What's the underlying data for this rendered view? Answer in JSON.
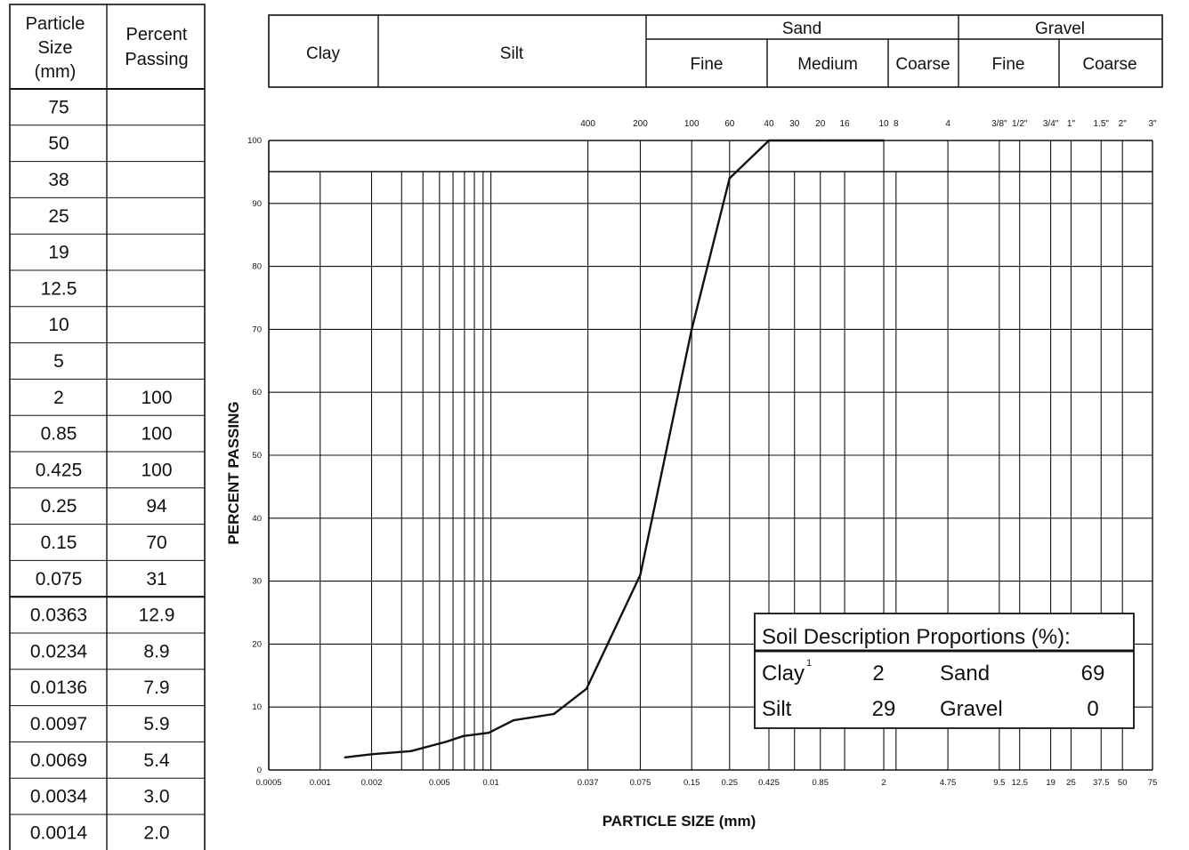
{
  "table": {
    "headers": {
      "particle_size": [
        "Particle",
        "Size",
        "(mm)"
      ],
      "percent_passing": [
        "Percent",
        "Passing"
      ]
    },
    "rows": [
      {
        "size": "75",
        "passing": ""
      },
      {
        "size": "50",
        "passing": ""
      },
      {
        "size": "38",
        "passing": ""
      },
      {
        "size": "25",
        "passing": ""
      },
      {
        "size": "19",
        "passing": ""
      },
      {
        "size": "12.5",
        "passing": ""
      },
      {
        "size": "10",
        "passing": ""
      },
      {
        "size": "5",
        "passing": ""
      },
      {
        "size": "2",
        "passing": "100"
      },
      {
        "size": "0.85",
        "passing": "100"
      },
      {
        "size": "0.425",
        "passing": "100"
      },
      {
        "size": "0.25",
        "passing": "94"
      },
      {
        "size": "0.15",
        "passing": "70"
      },
      {
        "size": "0.075",
        "passing": "31"
      },
      {
        "size": "0.0363",
        "passing": "12.9"
      },
      {
        "size": "0.0234",
        "passing": "8.9"
      },
      {
        "size": "0.0136",
        "passing": "7.9"
      },
      {
        "size": "0.0097",
        "passing": "5.9"
      },
      {
        "size": "0.0069",
        "passing": "5.4"
      },
      {
        "size": "0.0034",
        "passing": "3.0"
      },
      {
        "size": "0.0014",
        "passing": "2.0"
      }
    ]
  },
  "classification_header": {
    "clay": "Clay",
    "silt": "Silt",
    "sand": "Sand",
    "gravel": "Gravel",
    "sand_fine": "Fine",
    "sand_medium": "Medium",
    "sand_coarse": "Coarse",
    "gravel_fine": "Fine",
    "gravel_coarse": "Coarse"
  },
  "chart_data": {
    "type": "line",
    "title": "",
    "xlabel": "PARTICLE SIZE (mm)",
    "ylabel": "PERCENT PASSING",
    "x_scale": "log",
    "xlim": [
      0.0005,
      75
    ],
    "ylim": [
      0,
      100
    ],
    "y_ticks": [
      0,
      10,
      20,
      30,
      40,
      50,
      60,
      70,
      80,
      90,
      100
    ],
    "x_tick_labels": [
      {
        "value": 0.0005,
        "label": "0.0005"
      },
      {
        "value": 0.001,
        "label": "0.001"
      },
      {
        "value": 0.002,
        "label": "0.002"
      },
      {
        "value": 0.005,
        "label": "0.005"
      },
      {
        "value": 0.01,
        "label": "0.01"
      },
      {
        "value": 0.037,
        "label": "0.037"
      },
      {
        "value": 0.075,
        "label": "0.075"
      },
      {
        "value": 0.15,
        "label": "0.15"
      },
      {
        "value": 0.25,
        "label": "0.25"
      },
      {
        "value": 0.425,
        "label": "0.425"
      },
      {
        "value": 0.85,
        "label": "0.85"
      },
      {
        "value": 2,
        "label": "2"
      },
      {
        "value": 4.75,
        "label": "4.75"
      },
      {
        "value": 9.5,
        "label": "9.5"
      },
      {
        "value": 12.5,
        "label": "12.5"
      },
      {
        "value": 19,
        "label": "19"
      },
      {
        "value": 25,
        "label": "25"
      },
      {
        "value": 37.5,
        "label": "37.5"
      },
      {
        "value": 50,
        "label": "50"
      },
      {
        "value": 75,
        "label": "75"
      }
    ],
    "sieve_labels": [
      {
        "value": 0.037,
        "label": "400"
      },
      {
        "value": 0.075,
        "label": "200"
      },
      {
        "value": 0.15,
        "label": "100"
      },
      {
        "value": 0.25,
        "label": "60"
      },
      {
        "value": 0.425,
        "label": "40"
      },
      {
        "value": 0.6,
        "label": "30"
      },
      {
        "value": 0.85,
        "label": "20"
      },
      {
        "value": 1.18,
        "label": "16"
      },
      {
        "value": 2,
        "label": "10"
      },
      {
        "value": 2.36,
        "label": "8"
      },
      {
        "value": 4.75,
        "label": "4"
      },
      {
        "value": 9.5,
        "label": "3/8\""
      },
      {
        "value": 12.5,
        "label": "1/2\""
      },
      {
        "value": 19,
        "label": "3/4\""
      },
      {
        "value": 25,
        "label": "1\""
      },
      {
        "value": 37.5,
        "label": "1.5\""
      },
      {
        "value": 50,
        "label": "2\""
      },
      {
        "value": 75,
        "label": "3\""
      }
    ],
    "vertical_gridlines": [
      0.001,
      0.002,
      0.003,
      0.004,
      0.005,
      0.006,
      0.007,
      0.008,
      0.009,
      0.01,
      0.037,
      0.075,
      0.15,
      0.25,
      0.425,
      0.6,
      0.85,
      1.18,
      2,
      2.36,
      4.75,
      9.5,
      12.5,
      19,
      25,
      37.5,
      50
    ],
    "series": [
      {
        "x": [
          0.0014,
          0.002,
          0.0034,
          0.0055,
          0.0069,
          0.0097,
          0.0136,
          0.0234,
          0.0363,
          0.075,
          0.15,
          0.25,
          0.425,
          0.85,
          2
        ],
        "y": [
          2.0,
          2.5,
          3.0,
          4.5,
          5.4,
          5.9,
          7.9,
          8.9,
          12.9,
          31,
          70,
          94,
          100,
          100,
          100
        ]
      }
    ]
  },
  "legend_box": {
    "title": "Soil Description Proportions (%):",
    "clay_label": "Clay",
    "clay_note": "1",
    "clay_value": "2",
    "silt_label": "Silt",
    "silt_value": "29",
    "sand_label": "Sand",
    "sand_value": "69",
    "gravel_label": "Gravel",
    "gravel_value": "0"
  }
}
